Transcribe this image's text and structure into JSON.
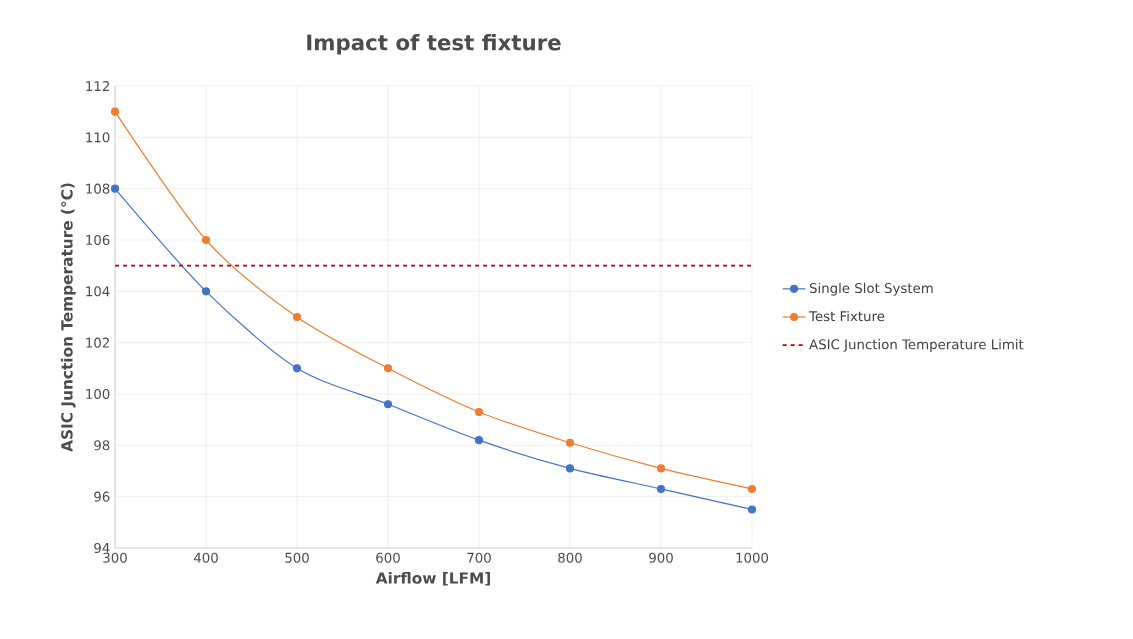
{
  "chart_data": {
    "type": "line",
    "title": "Impact of test fixture",
    "xlabel": "Airflow [LFM]",
    "ylabel": "ASIC Junction Temperature (°C)",
    "x": [
      300,
      400,
      500,
      600,
      700,
      800,
      900,
      1000
    ],
    "series": [
      {
        "name": "Single Slot System",
        "color": "#4472c4",
        "values": [
          108,
          104,
          101,
          99.6,
          98.2,
          97.1,
          96.3,
          95.5
        ]
      },
      {
        "name": "Test Fixture",
        "color": "#ed7d31",
        "values": [
          111,
          106,
          103,
          101,
          99.3,
          98.1,
          97.1,
          96.3
        ]
      }
    ],
    "ref_lines": [
      {
        "axis": "y",
        "value": 105,
        "label": "ASIC Junction Temperature Limit",
        "color": "#c00000",
        "line_style": "dashed"
      }
    ],
    "xlim": [
      300,
      1000
    ],
    "xticks": [
      300,
      400,
      500,
      600,
      700,
      800,
      900,
      1000
    ],
    "ylim": [
      94,
      112
    ],
    "yticks": [
      94,
      96,
      98,
      100,
      102,
      104,
      106,
      108,
      110,
      112
    ],
    "grid": true,
    "legend": "right",
    "marker": "circle",
    "line_style": "solid"
  }
}
